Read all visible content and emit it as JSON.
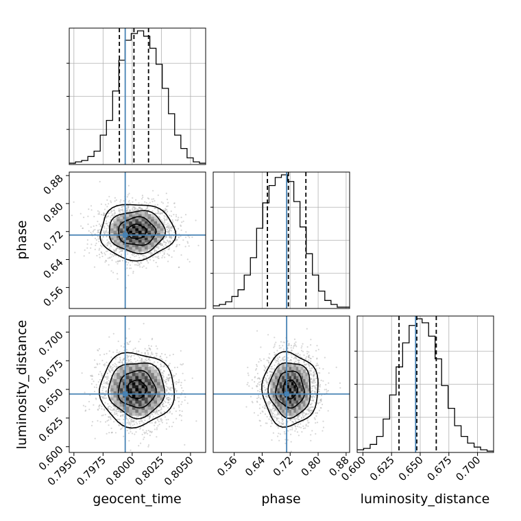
{
  "colors": {
    "truth": "#4682b4",
    "hist": "#000000",
    "grid": "#b0b0b0",
    "points": "#b4b4b4"
  },
  "chart_data": {
    "type": "corner",
    "parameters": [
      "geocent_time",
      "phase",
      "luminosity_distance"
    ],
    "grid": true,
    "truths": {
      "geocent_time": 0.7994,
      "phase": 0.71,
      "luminosity_distance": 0.646
    },
    "ranges": {
      "geocent_time": [
        0.7946,
        0.8063
      ],
      "phase": [
        0.5,
        0.89
      ],
      "luminosity_distance": [
        0.595,
        0.714
      ]
    },
    "ticks": {
      "geocent_time": {
        "values": [
          0.795,
          0.7975,
          0.8,
          0.8025,
          0.805
        ],
        "labels": [
          "0.7950",
          "0.7975",
          "0.8000",
          "0.8025",
          "0.8050"
        ]
      },
      "phase": {
        "values": [
          0.56,
          0.64,
          0.72,
          0.8,
          0.88
        ],
        "labels": [
          "0.56",
          "0.64",
          "0.72",
          "0.80",
          "0.88"
        ]
      },
      "luminosity_distance": {
        "values": [
          0.6,
          0.625,
          0.65,
          0.675,
          0.7
        ],
        "labels": [
          "0.600",
          "0.625",
          "0.650",
          "0.675",
          "0.700"
        ]
      }
    },
    "quantiles": {
      "geocent_time": [
        0.7989,
        0.80015,
        0.8014
      ],
      "phase": [
        0.655,
        0.715,
        0.765
      ],
      "luminosity_distance": [
        0.6315,
        0.647,
        0.664
      ]
    },
    "histograms": {
      "geocent_time": [
        0.01,
        0.02,
        0.03,
        0.06,
        0.1,
        0.22,
        0.33,
        0.55,
        0.78,
        0.93,
        0.98,
        1.0,
        0.96,
        0.87,
        0.75,
        0.57,
        0.38,
        0.22,
        0.12,
        0.05,
        0.02,
        0.01
      ],
      "phase": [
        0.02,
        0.03,
        0.05,
        0.09,
        0.14,
        0.25,
        0.38,
        0.6,
        0.79,
        0.92,
        0.98,
        1.0,
        0.95,
        0.8,
        0.61,
        0.41,
        0.25,
        0.13,
        0.06,
        0.03,
        0.01,
        0.01
      ],
      "luminosity_distance": [
        0.02,
        0.03,
        0.06,
        0.12,
        0.25,
        0.43,
        0.64,
        0.82,
        0.95,
        1.0,
        0.97,
        0.87,
        0.7,
        0.5,
        0.33,
        0.2,
        0.12,
        0.07,
        0.04,
        0.02,
        0.01
      ]
    },
    "pairs": [
      {
        "x": "geocent_time",
        "y": "phase",
        "mean": [
          0.8004,
          0.72
        ],
        "sd": [
          0.0016,
          0.04
        ]
      },
      {
        "x": "geocent_time",
        "y": "luminosity_distance",
        "mean": [
          0.8004,
          0.65
        ],
        "sd": [
          0.0016,
          0.016
        ]
      },
      {
        "x": "phase",
        "y": "luminosity_distance",
        "mean": [
          0.72,
          0.65
        ],
        "sd": [
          0.04,
          0.016
        ]
      }
    ],
    "contour_levels": [
      0.5,
      1.0,
      1.5,
      2.0
    ]
  }
}
